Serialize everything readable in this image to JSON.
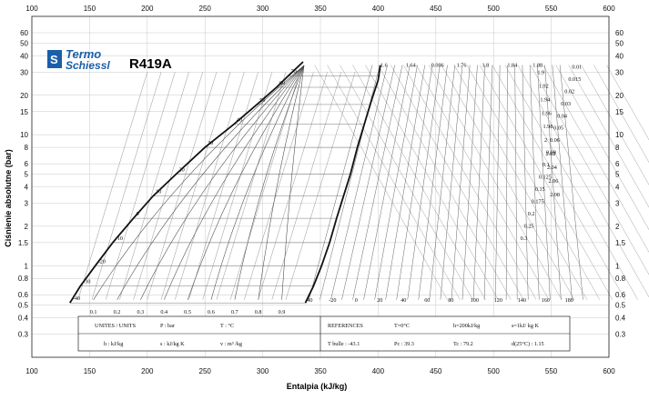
{
  "logo": {
    "line1": "Termo",
    "line2": "Schiessl"
  },
  "refrigerant": "R419A",
  "chart_data": {
    "type": "line",
    "title": "R419A",
    "xlabel": "Entalpia (kJ/kg)",
    "ylabel": "Ciśnienie absolutne (bar)",
    "xlim": [
      100,
      600
    ],
    "ylim": [
      0.2,
      80
    ],
    "y_scale": "log",
    "grid": true,
    "x_ticks": [
      100,
      150,
      200,
      250,
      300,
      350,
      400,
      450,
      500,
      550,
      600
    ],
    "y_ticks_left": [
      0.3,
      0.4,
      0.5,
      0.6,
      0.8,
      1,
      1.5,
      2,
      3,
      4,
      5,
      6,
      8,
      10,
      15,
      20,
      30,
      40,
      50,
      60
    ],
    "y_ticks_right": [
      0.3,
      0.4,
      0.5,
      0.6,
      0.8,
      1,
      1.5,
      2,
      3,
      4,
      5,
      6,
      8,
      10,
      15,
      20,
      30,
      40,
      50,
      60
    ],
    "series": [
      {
        "name": "",
        "x": [
          133,
          142,
          155,
          170,
          188,
          205,
          225,
          250,
          275,
          295,
          312,
          322,
          335
        ],
        "y": [
          0.52,
          0.7,
          1.0,
          1.5,
          2.3,
          3.4,
          5.0,
          8.0,
          12.0,
          17.0,
          23.0,
          28.0,
          36.0
        ]
      },
      {
        "name": "",
        "x": [
          337,
          344,
          351,
          358,
          364,
          370,
          376,
          382,
          388,
          394,
          400,
          402
        ],
        "y": [
          0.52,
          0.7,
          1.0,
          1.5,
          2.3,
          3.4,
          5.0,
          8.0,
          12.0,
          18.0,
          26.0,
          34.0
        ]
      }
    ],
    "isotherm_labels": [
      "-40",
      "-30",
      "-20",
      "-10",
      "0",
      "10",
      "20",
      "30",
      "40",
      "50",
      "60",
      "70"
    ],
    "quality_labels": [
      "0.1",
      "0.2",
      "0.3",
      "0.4",
      "0.5",
      "0.6",
      "0.7",
      "0.8",
      "0.9"
    ],
    "vapor_temp_labels": [
      "-40",
      "-20",
      "0",
      "20",
      "40",
      "60",
      "80",
      "100",
      "120",
      "140",
      "160",
      "180"
    ],
    "entropy_labels_top": [
      "1.6",
      "1.64",
      "0.006",
      "1.76",
      "1.8",
      "1.84",
      "1.88"
    ],
    "entropy_labels_right": [
      "1.9",
      "1.92",
      "1.94",
      "1.96",
      "1.98",
      "2",
      "2.02",
      "2.04",
      "2.06",
      "2.08"
    ],
    "volume_labels": [
      "0.01",
      "0.015",
      "0.02",
      "0.03",
      "0.04",
      "0.05",
      "0.06",
      "0.08",
      "0.1",
      "0.125",
      "0.15",
      "0.175",
      "0.2",
      "0.25",
      "0.3"
    ]
  },
  "info_box": {
    "units_title": "UNITES / UNITS",
    "p_unit": "P : bar",
    "t_unit": "T : °C",
    "h_unit": "h : kJ/kg",
    "s_unit": "s : kJ/kg K",
    "v_unit": "v : m³ /kg",
    "ref_title": "REFERENCES",
    "t0": "T=0°C",
    "h200": "h=200kJ/kg",
    "s1": "s=1kJ/ kg K",
    "tbulle": "T bulle : -43.1",
    "pc": "Pc : 39.3",
    "tc": "Tc : 79.2",
    "d25": "d(25°C) : 1.15"
  }
}
